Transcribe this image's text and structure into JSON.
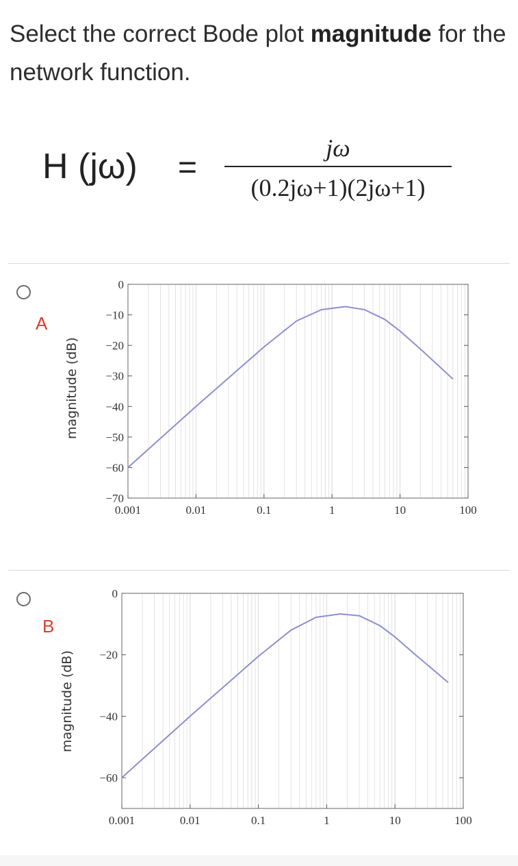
{
  "question": {
    "text_before": "Select the correct Bode plot ",
    "text_bold": "magnitude",
    "text_after": " for the network function."
  },
  "equation": {
    "lhs": "H (jω)",
    "equals": "=",
    "numerator": "jω",
    "denominator": "(0.2jω+1)(2jω+1)"
  },
  "options": [
    {
      "letter": "A",
      "ylabel": "magnitude (dB)",
      "x_ticks": [
        "0.001",
        "0.01",
        "0.1",
        "1",
        "10",
        "100"
      ],
      "y_ticks": [
        "0",
        "−10",
        "−20",
        "−30",
        "−40",
        "−50",
        "−60",
        "−70"
      ]
    },
    {
      "letter": "B",
      "ylabel": "magnitude (dB)",
      "x_ticks": [
        "0.001",
        "0.01",
        "0.1",
        "1",
        "10",
        "100"
      ],
      "y_ticks": [
        "0",
        "−20",
        "−40",
        "−60"
      ]
    }
  ],
  "colors": {
    "curve": "#8c8fcf",
    "grid": "#dcdcdc",
    "accent_letter": "#e03a2f"
  },
  "chart_data": [
    {
      "type": "line",
      "xscale": "log",
      "xlim": [
        0.001,
        100
      ],
      "ylim": [
        -70,
        0
      ],
      "ylabel": "magnitude (dB)",
      "xticks": [
        0.001,
        0.01,
        0.1,
        1,
        10,
        100
      ],
      "yticks": [
        0,
        -10,
        -20,
        -30,
        -40,
        -50,
        -60,
        -70
      ],
      "x": [
        0.001,
        0.01,
        0.1,
        0.3,
        0.7,
        1.58,
        3,
        6,
        10,
        20,
        60
      ],
      "y": [
        -60,
        -40,
        -20.5,
        -12,
        -8.3,
        -7.3,
        -8.3,
        -11.5,
        -15.3,
        -21.2,
        -31
      ],
      "grid": true
    },
    {
      "type": "line",
      "xscale": "log",
      "xlim": [
        0.001,
        100
      ],
      "ylim": [
        -70,
        0
      ],
      "ylabel": "magnitude (dB)",
      "xticks": [
        0.001,
        0.01,
        0.1,
        1,
        10,
        100
      ],
      "yticks": [
        0,
        -20,
        -40,
        -60
      ],
      "x": [
        0.001,
        0.01,
        0.1,
        0.3,
        0.7,
        1.58,
        3,
        6,
        10,
        20,
        60
      ],
      "y": [
        -60,
        -40,
        -20.5,
        -12,
        -7.8,
        -6.7,
        -7.3,
        -10.5,
        -14.2,
        -20,
        -29
      ],
      "grid": true
    }
  ]
}
